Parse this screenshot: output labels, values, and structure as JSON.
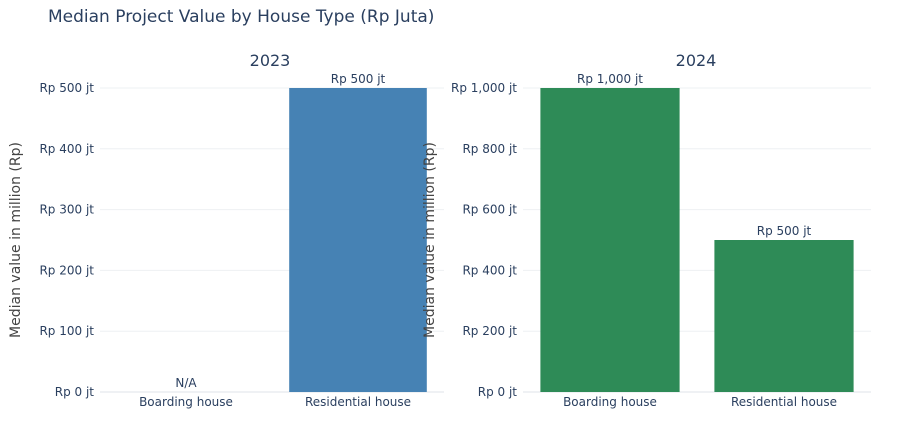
{
  "title": "Median Project Value by House Type (Rp Juta)",
  "chart_data": [
    {
      "type": "bar",
      "title": "2023",
      "ylabel": "Median value in million (Rp)",
      "categories": [
        "Boarding house",
        "Residential house"
      ],
      "values": [
        null,
        500
      ],
      "data_labels": [
        "N/A",
        "Rp 500 jt"
      ],
      "ylim": [
        0,
        500
      ],
      "yticks": [
        0,
        100,
        200,
        300,
        400,
        500
      ],
      "ytick_labels": [
        "Rp 0 jt",
        "Rp 100 jt",
        "Rp 200 jt",
        "Rp 300 jt",
        "Rp 400 jt",
        "Rp 500 jt"
      ],
      "color": "#4682b4",
      "grid": true
    },
    {
      "type": "bar",
      "title": "2024",
      "ylabel": "Median value in million (Rp)",
      "categories": [
        "Boarding house",
        "Residential house"
      ],
      "values": [
        1000,
        500
      ],
      "data_labels": [
        "Rp 1,000 jt",
        "Rp 500 jt"
      ],
      "ylim": [
        0,
        1000
      ],
      "yticks": [
        0,
        200,
        400,
        600,
        800,
        1000
      ],
      "ytick_labels": [
        "Rp 0 jt",
        "Rp 200 jt",
        "Rp 400 jt",
        "Rp 600 jt",
        "Rp 800 jt",
        "Rp 1,000 jt"
      ],
      "color": "#2e8b57",
      "grid": true
    }
  ]
}
